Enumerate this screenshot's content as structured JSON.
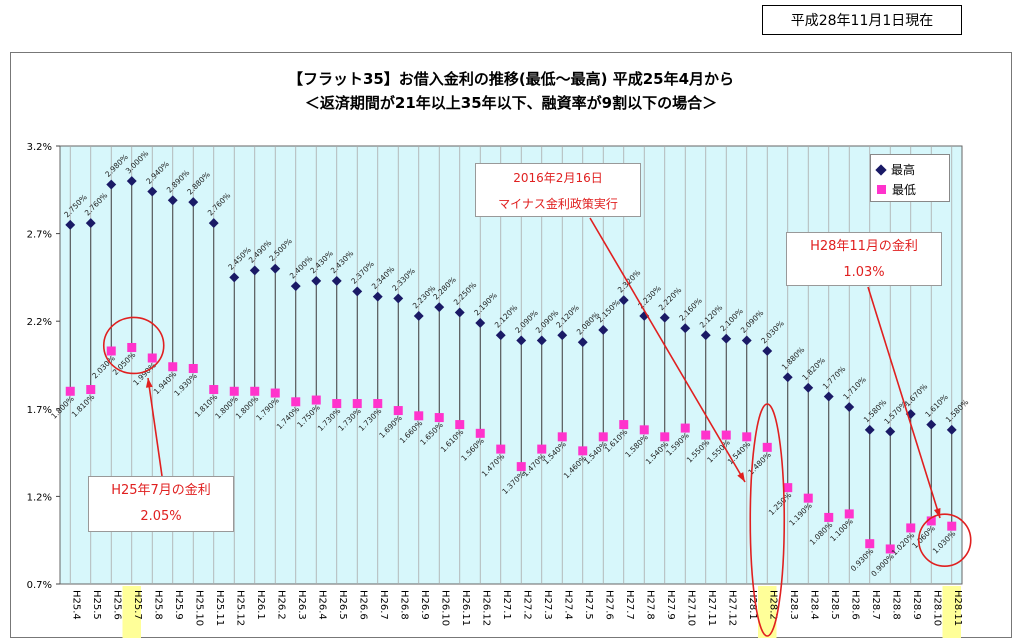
{
  "date_stamp": "平成28年11月1日現在",
  "title_line1": "【フラット35】お借入金利の推移(最低～最高) 平成25年4月から",
  "title_line2": "＜返済期間が21年以上35年以下、融資率が9割以下の場合＞",
  "legend": {
    "max": "最高",
    "min": "最低"
  },
  "callouts": {
    "h25": {
      "line1": "H25年7月の金利",
      "line2": "2.05%"
    },
    "h28": {
      "line1": "H28年11月の金利",
      "line2": "1.03%"
    },
    "neg": {
      "line1": "2016年2月16日",
      "line2": "マイナス金利政策実行"
    }
  },
  "colors": {
    "plot_bg": "#d7f7fb",
    "max": "#1a1a66",
    "min": "#ff33cc",
    "highlight": "#ffff99",
    "annotation": "#e02020"
  },
  "chart_data": {
    "type": "scatter",
    "title": "【フラット35】お借入金利の推移(最低～最高) 平成25年4月から",
    "subtitle": "＜返済期間が21年以上35年以下、融資率が9割以下の場合＞",
    "ylim": [
      0.7,
      3.2
    ],
    "yticks": [
      "0.7%",
      "1.2%",
      "1.7%",
      "2.2%",
      "2.7%",
      "3.2%"
    ],
    "grid": "vertical",
    "legend_position": "top-right",
    "highlighted_categories": [
      "H25.7",
      "H28.2",
      "H28.11"
    ],
    "categories": [
      "H25.4",
      "H25.5",
      "H25.6",
      "H25.7",
      "H25.8",
      "H25.9",
      "H25.10",
      "H25.11",
      "H25.12",
      "H26.1",
      "H26.2",
      "H26.3",
      "H26.4",
      "H26.5",
      "H26.6",
      "H26.7",
      "H26.8",
      "H26.9",
      "H26.10",
      "H26.11",
      "H26.12",
      "H27.1",
      "H27.2",
      "H27.3",
      "H27.4",
      "H27.5",
      "H27.6",
      "H27.7",
      "H27.8",
      "H27.9",
      "H27.10",
      "H27.11",
      "H27.12",
      "H28.1",
      "H28.2",
      "H28.3",
      "H28.4",
      "H28.5",
      "H28.6",
      "H28.7",
      "H28.8",
      "H28.9",
      "H28.10",
      "H28.11"
    ],
    "series": [
      {
        "name": "最高",
        "values": [
          2.75,
          2.76,
          2.98,
          3.0,
          2.94,
          2.89,
          2.88,
          2.76,
          2.45,
          2.49,
          2.5,
          2.4,
          2.43,
          2.43,
          2.37,
          2.34,
          2.33,
          2.23,
          2.28,
          2.25,
          2.19,
          2.12,
          2.09,
          2.09,
          2.12,
          2.08,
          2.15,
          2.32,
          2.23,
          2.22,
          2.16,
          2.12,
          2.1,
          2.09,
          2.03,
          1.88,
          1.82,
          1.77,
          1.71,
          1.58,
          1.57,
          1.67,
          1.61,
          1.58
        ],
        "labels": [
          "2.750%",
          "2.760%",
          "2.980%",
          "3.000%",
          "2.940%",
          "2.890%",
          "2.880%",
          "2.760%",
          "2.450%",
          "2.490%",
          "2.500%",
          "2.400%",
          "2.430%",
          "2.430%",
          "2.370%",
          "2.340%",
          "2.330%",
          "2.230%",
          "2.280%",
          "2.250%",
          "2.190%",
          "2.120%",
          "2.090%",
          "2.090%",
          "2.120%",
          "2.080%",
          "2.150%",
          "2.320%",
          "2.230%",
          "2.220%",
          "2.160%",
          "2.120%",
          "2.100%",
          "2.090%",
          "2.030%",
          "1.880%",
          "1.820%",
          "1.770%",
          "1.710%",
          "1.580%",
          "1.570%",
          "1.670%",
          "1.610%",
          "1.580%"
        ]
      },
      {
        "name": "最低",
        "values": [
          1.8,
          1.81,
          2.03,
          2.05,
          1.99,
          1.94,
          1.93,
          1.81,
          1.8,
          1.8,
          1.79,
          1.74,
          1.75,
          1.73,
          1.73,
          1.73,
          1.69,
          1.66,
          1.65,
          1.61,
          1.56,
          1.47,
          1.37,
          1.47,
          1.54,
          1.46,
          1.54,
          1.61,
          1.58,
          1.54,
          1.59,
          1.55,
          1.55,
          1.54,
          1.48,
          1.25,
          1.19,
          1.08,
          1.1,
          0.93,
          0.9,
          1.02,
          1.06,
          1.03
        ],
        "labels": [
          "1.800%",
          "1.810%",
          "2.030%",
          "2.050%",
          "1.990%",
          "1.940%",
          "1.930%",
          "1.810%",
          "1.800%",
          "1.800%",
          "1.790%",
          "1.740%",
          "1.750%",
          "1.730%",
          "1.730%",
          "1.730%",
          "1.690%",
          "1.660%",
          "1.650%",
          "1.610%",
          "1.560%",
          "1.470%",
          "1.370%",
          "1.470%",
          "1.540%",
          "1.460%",
          "1.540%",
          "1.610%",
          "1.580%",
          "1.540%",
          "1.590%",
          "1.550%",
          "1.550%",
          "1.540%",
          "1.480%",
          "1.250%",
          "1.190%",
          "1.080%",
          "1.100%",
          "0.930%",
          "0.900%",
          "1.020%",
          "1.060%",
          "1.030%"
        ]
      }
    ]
  }
}
